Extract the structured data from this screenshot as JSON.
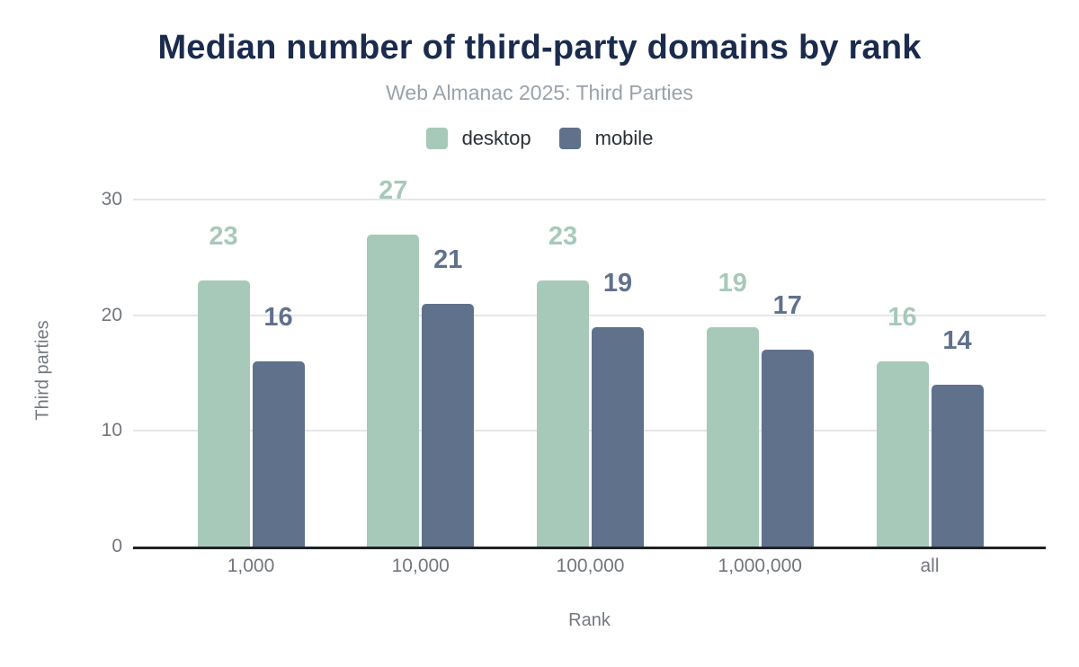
{
  "header": {
    "title": "Median number of third-party domains by rank",
    "subtitle": "Web Almanac 2025: Third Parties"
  },
  "chart_data": {
    "type": "bar",
    "title": "Median number of third-party domains by rank",
    "subtitle": "Web Almanac 2025: Third Parties",
    "categories": [
      "1,000",
      "10,000",
      "100,000",
      "1,000,000",
      "all"
    ],
    "series": [
      {
        "name": "desktop",
        "color": "#a7c9ba",
        "values": [
          23,
          27,
          23,
          19,
          16
        ]
      },
      {
        "name": "mobile",
        "color": "#60718c",
        "values": [
          16,
          21,
          19,
          17,
          14
        ]
      }
    ],
    "xlabel": "Rank",
    "ylabel": "Third parties",
    "ylim": [
      0,
      30
    ],
    "yticks": [
      0,
      10,
      20,
      30
    ],
    "grid": true,
    "legend_position": "top",
    "annotations": "value above each bar in series color"
  },
  "colors": {
    "title": "#1a2b4d",
    "subtitle": "#9aa2aa",
    "axis_text": "#72767d",
    "legend_text": "#2b3036",
    "gridline": "#e6e6e6",
    "axis_line": "#202124",
    "background": "#ffffff"
  }
}
